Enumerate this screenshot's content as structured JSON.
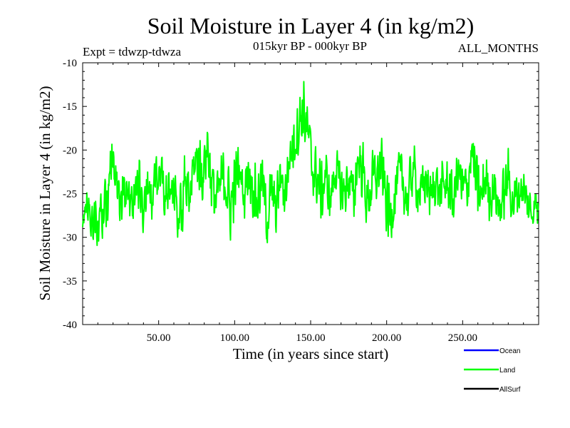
{
  "chart_data": {
    "type": "line",
    "title": "Soil Moisture in Layer 4 (in kg/m2)",
    "subtitle_left": "Expt = tdwzp-tdwza",
    "subtitle_center": "015kyr BP - 000kyr BP",
    "subtitle_right": "ALL_MONTHS",
    "xlabel": "Time (in years since start)",
    "ylabel": "Soil Moisture in Layer 4 (in kg/m2)",
    "xlim": [
      0,
      300
    ],
    "ylim": [
      -40,
      -10
    ],
    "x_ticks": [
      50,
      100,
      150,
      200,
      250
    ],
    "x_tick_labels": [
      "50.00",
      "100.00",
      "150.00",
      "200.00",
      "250.00"
    ],
    "y_ticks": [
      -40,
      -35,
      -30,
      -25,
      -20,
      -15,
      -10
    ],
    "y_tick_labels": [
      "-40",
      "-35",
      "-30",
      "-25",
      "-20",
      "-15",
      "-10"
    ],
    "legend": [
      {
        "name": "Ocean",
        "color": "#0000ff"
      },
      {
        "name": "Land",
        "color": "#00ff00"
      },
      {
        "name": "AllSurf",
        "color": "#000000"
      }
    ],
    "series": [
      {
        "name": "Land",
        "color": "#00ff00",
        "step": 0.25,
        "x": [
          0,
          2,
          4,
          6,
          8,
          10,
          13,
          16,
          18,
          20,
          22,
          25,
          28,
          31,
          34,
          37,
          40,
          43,
          46,
          49,
          52,
          55,
          58,
          61,
          64,
          67,
          70,
          73,
          76,
          79,
          82,
          85,
          88,
          91,
          94,
          97,
          100,
          103,
          106,
          109,
          112,
          115,
          118,
          121,
          124,
          127,
          130,
          133,
          136,
          139,
          142,
          145,
          148,
          151,
          154,
          157,
          160,
          163,
          166,
          169,
          172,
          175,
          178,
          181,
          184,
          187,
          190,
          193,
          196,
          199,
          202,
          205,
          208,
          211,
          214,
          217,
          220,
          223,
          226,
          229,
          232,
          235,
          238,
          241,
          244,
          247,
          250,
          253,
          256,
          259,
          262,
          265,
          268,
          271,
          274,
          277,
          280,
          283,
          286,
          289,
          292,
          295,
          298,
          300
        ],
        "values": [
          -28,
          -27,
          -26,
          -28.5,
          -27,
          -29,
          -27,
          -25,
          -24,
          -20,
          -22,
          -27,
          -24,
          -26,
          -25,
          -24,
          -27,
          -25,
          -26,
          -22,
          -23,
          -26,
          -25,
          -25,
          -28,
          -24,
          -26,
          -22,
          -21,
          -23,
          -19,
          -24,
          -26,
          -24,
          -23,
          -27,
          -24,
          -22,
          -25,
          -22,
          -24,
          -26,
          -23,
          -28,
          -25,
          -27,
          -23,
          -25,
          -21,
          -19,
          -17,
          -15,
          -18,
          -22,
          -23,
          -25,
          -23,
          -26,
          -22,
          -24,
          -25,
          -23,
          -26,
          -21,
          -22,
          -26,
          -24,
          -23,
          -22,
          -25,
          -28,
          -25,
          -23,
          -24,
          -26,
          -22,
          -24,
          -25,
          -23,
          -26,
          -23,
          -25,
          -24,
          -24,
          -26,
          -22,
          -25,
          -24,
          -20,
          -24,
          -26,
          -23,
          -25,
          -24,
          -27,
          -25,
          -23,
          -26,
          -25,
          -24,
          -26,
          -27,
          -26,
          -27
        ],
        "amplitude": [
          1.5,
          2.5,
          3,
          3.5,
          4,
          4,
          4.5,
          4.5,
          4.5,
          4,
          4,
          4.5,
          3.5,
          3.5,
          3.5,
          3.5,
          3.5,
          3.5,
          3.5,
          3.5,
          3.5,
          3.5,
          3.5,
          3.5,
          4,
          4,
          4,
          4,
          4,
          4,
          4.5,
          4.5,
          4.5,
          4.5,
          4.5,
          4.5,
          4,
          4,
          4,
          4,
          4,
          4,
          4,
          4,
          4,
          3.5,
          3.5,
          3.5,
          4,
          4,
          4.5,
          5,
          4.5,
          4,
          4,
          4,
          3.5,
          3.5,
          3.5,
          3.5,
          3.5,
          4,
          4,
          4,
          4,
          4,
          4,
          4,
          4.5,
          4.5,
          4.5,
          4,
          4,
          4,
          4,
          4,
          3.5,
          3.5,
          3.5,
          3.5,
          3.5,
          3.5,
          3.5,
          3.5,
          3.5,
          3.5,
          4,
          4,
          4.5,
          4.5,
          4,
          4,
          4,
          3.5,
          3.5,
          3.5,
          3.5,
          3.5,
          3.5,
          3.5,
          3.5,
          3,
          3,
          3
        ]
      }
    ]
  }
}
